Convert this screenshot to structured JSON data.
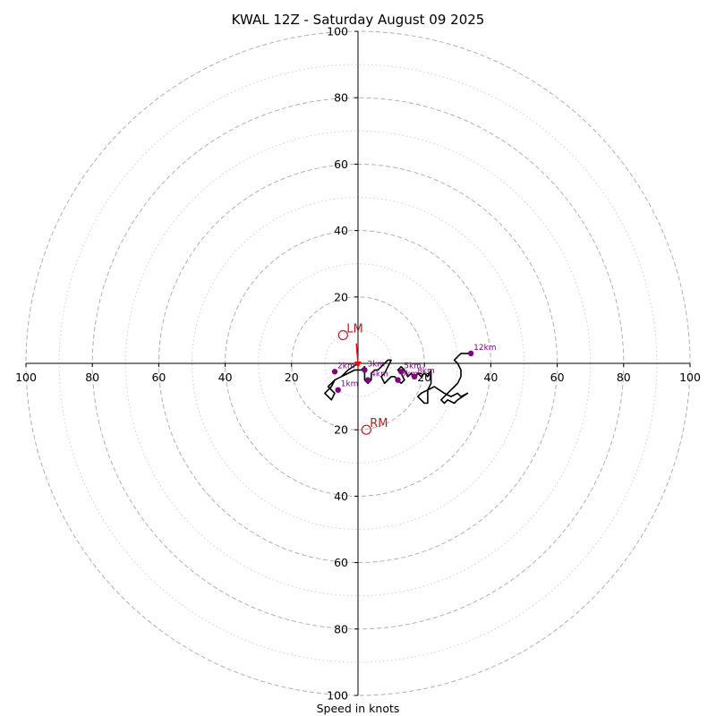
{
  "chart_data": {
    "type": "hodograph",
    "title": "KWAL 12Z - Saturday August 09 2025",
    "xlabel": "Speed in knots",
    "units": "knots",
    "range": [
      -100,
      100
    ],
    "rings_major": [
      20,
      40,
      60,
      80,
      100
    ],
    "rings_minor": [
      10,
      30,
      50,
      70,
      90
    ],
    "ticks_x": [
      "100",
      "80",
      "60",
      "40",
      "20",
      "20",
      "40",
      "60",
      "80",
      "100"
    ],
    "ticks_x_values": [
      -100,
      -80,
      -60,
      -40,
      -20,
      20,
      40,
      60,
      80,
      100
    ],
    "ticks_y": [
      "100",
      "80",
      "60",
      "40",
      "20",
      "20",
      "40",
      "60",
      "80",
      "100"
    ],
    "ticks_y_values": [
      100,
      80,
      60,
      40,
      20,
      -20,
      -40,
      -60,
      -80,
      -100
    ],
    "colors": {
      "trace": "#000000",
      "height_markers": "#800080",
      "storm_motion": "#b22222",
      "rings": "#b0b0b0",
      "sfc_arrow": "#ff0000"
    },
    "trace": [
      [
        0,
        0
      ],
      [
        -3,
        -2
      ],
      [
        -5,
        -4
      ],
      [
        -7,
        -5
      ],
      [
        -8,
        -7
      ],
      [
        -9,
        -8
      ],
      [
        -10,
        -9
      ],
      [
        -9,
        -10
      ],
      [
        -8,
        -11
      ],
      [
        -7,
        -9
      ],
      [
        -8,
        -8
      ],
      [
        -9,
        -7
      ],
      [
        -8,
        -6
      ],
      [
        -7,
        -5
      ],
      [
        -5,
        -4
      ],
      [
        -3,
        -3
      ],
      [
        -1,
        -2
      ],
      [
        1,
        -2
      ],
      [
        2,
        -1
      ],
      [
        2,
        -3
      ],
      [
        2,
        -5
      ],
      [
        3,
        -6
      ],
      [
        4,
        -5
      ],
      [
        4,
        -3
      ],
      [
        5,
        -2
      ],
      [
        6,
        -2
      ],
      [
        7,
        -1
      ],
      [
        8,
        0
      ],
      [
        9,
        1
      ],
      [
        10,
        1
      ],
      [
        9,
        -1
      ],
      [
        8,
        -3
      ],
      [
        7,
        -4
      ],
      [
        8,
        -6
      ],
      [
        9,
        -5
      ],
      [
        10,
        -4
      ],
      [
        11,
        -4
      ],
      [
        12,
        -5
      ],
      [
        13,
        -6
      ],
      [
        14,
        -5
      ],
      [
        13,
        -3
      ],
      [
        12,
        -2
      ],
      [
        13,
        -1
      ],
      [
        14,
        -2
      ],
      [
        15,
        -4
      ],
      [
        16,
        -3
      ],
      [
        17,
        -4
      ],
      [
        18,
        -3
      ],
      [
        19,
        -4
      ],
      [
        20,
        -3
      ],
      [
        21,
        -4
      ],
      [
        22,
        -2
      ],
      [
        22,
        -6
      ],
      [
        21,
        -8
      ],
      [
        19,
        -9
      ],
      [
        18,
        -10
      ],
      [
        19,
        -11
      ],
      [
        20,
        -12
      ],
      [
        21,
        -12
      ],
      [
        21,
        -8
      ],
      [
        23,
        -7
      ],
      [
        26,
        -9
      ],
      [
        28,
        -10
      ],
      [
        30,
        -9
      ],
      [
        31,
        -10
      ],
      [
        33,
        -9
      ],
      [
        30,
        -11
      ],
      [
        29,
        -12
      ],
      [
        27,
        -11
      ],
      [
        26,
        -12
      ],
      [
        25,
        -11
      ],
      [
        26,
        -10
      ],
      [
        28,
        -8
      ],
      [
        29,
        -7
      ],
      [
        30,
        -6
      ],
      [
        31,
        -4
      ],
      [
        31,
        -2
      ],
      [
        30,
        0
      ],
      [
        29,
        1
      ],
      [
        30,
        2
      ],
      [
        31,
        3
      ],
      [
        34,
        3
      ]
    ],
    "height_markers": [
      {
        "label": "12km",
        "u": 34,
        "v": 3
      },
      {
        "label": "2km",
        "u": -7,
        "v": -2.5
      },
      {
        "label": "3km",
        "u": 2,
        "v": -2
      },
      {
        "label": "5km",
        "u": 13,
        "v": -2.5
      },
      {
        "label": "6km",
        "u": 12,
        "v": -5
      },
      {
        "label": "8km",
        "u": 17,
        "v": -4
      },
      {
        "label": "1km",
        "u": -6,
        "v": -8
      },
      {
        "label": "4km",
        "u": 3,
        "v": -5
      }
    ],
    "storm_motion": [
      {
        "label": "LM",
        "u": -4.5,
        "v": 8.5
      },
      {
        "label": "RM",
        "u": 2.5,
        "v": -20
      }
    ],
    "surface_wind_arrow": {
      "u": -0.5,
      "v": 6
    }
  }
}
